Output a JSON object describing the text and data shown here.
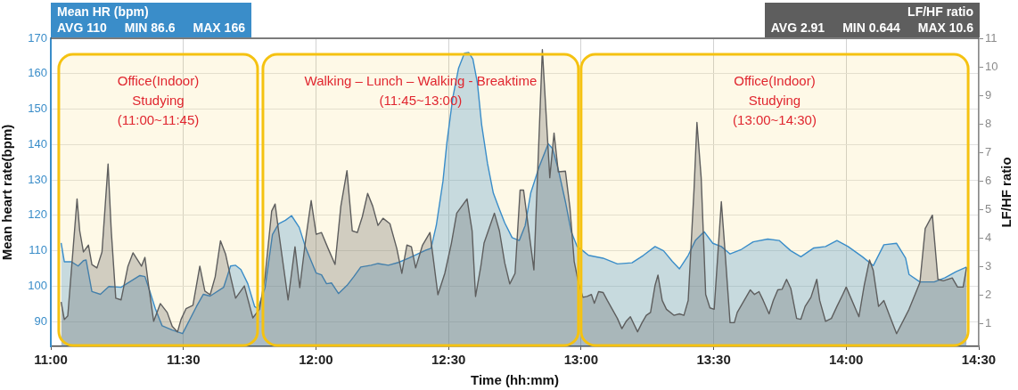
{
  "chart_data": {
    "type": "area",
    "xlabel": "Time (hh:mm)",
    "ylabel": "Mean heart rate(bpm)",
    "y2label": "LF/HF ratio",
    "xlim": [
      11,
      14.5
    ],
    "xticks": [
      {
        "value": 11,
        "label": "11:00"
      },
      {
        "value": 11.5,
        "label": "11:30"
      },
      {
        "value": 12,
        "label": "12:00"
      },
      {
        "value": 12.5,
        "label": "12:30"
      },
      {
        "value": 13,
        "label": "13:00"
      },
      {
        "value": 13.5,
        "label": "13:30"
      },
      {
        "value": 14,
        "label": "14:00"
      },
      {
        "value": 14.5,
        "label": "14:30"
      }
    ],
    "ylim": [
      83,
      170
    ],
    "yticks": [
      90,
      100,
      110,
      120,
      130,
      140,
      150,
      160,
      170
    ],
    "y2lim": [
      0.2,
      11
    ],
    "y2ticks": [
      1,
      2,
      3,
      4,
      5,
      6,
      7,
      8,
      9,
      10,
      11
    ],
    "grid": true,
    "legend": "top",
    "marker": "none",
    "annotations": [
      "AVG 110",
      "MIN 86.6",
      "MAX 166",
      "AVG 2.91",
      "MIN 0.644",
      "MAX 10.6"
    ],
    "bands": [
      {
        "axis": "x",
        "from": 11.03,
        "to": 11.78,
        "label": "Office(Indoor)\nStudying\n(11:00~11:45)",
        "color": "#f5c211"
      },
      {
        "axis": "x",
        "from": 11.8,
        "to": 12.99,
        "label": "Walking – Lunch – Walking - Breaktime\n(11:45~13:00)",
        "color": "#f5c211"
      },
      {
        "axis": "x",
        "from": 13.0,
        "to": 14.46,
        "label": "Office(Indoor)\nStudying\n(13:00~14:30)",
        "color": "#f5c211"
      }
    ],
    "series": [
      {
        "name": "Mean HR (bpm)",
        "color": "#3a8dc9",
        "axis": "y",
        "x": [
          11.039,
          11.051,
          11.077,
          11.103,
          11.123,
          11.133,
          11.155,
          11.187,
          11.219,
          11.265,
          11.297,
          11.336,
          11.355,
          11.375,
          11.394,
          11.42,
          11.458,
          11.497,
          11.549,
          11.575,
          11.601,
          11.652,
          11.678,
          11.697,
          11.717,
          11.743,
          11.769,
          11.781,
          11.808,
          11.836,
          11.859,
          11.885,
          11.908,
          11.937,
          11.962,
          12.001,
          12.021,
          12.04,
          12.059,
          12.085,
          12.117,
          12.143,
          12.169,
          12.208,
          12.234,
          12.273,
          12.311,
          12.35,
          12.415,
          12.434,
          12.454,
          12.479,
          12.494,
          12.516,
          12.538,
          12.56,
          12.576,
          12.592,
          12.609,
          12.625,
          12.647,
          12.669,
          12.69,
          12.712,
          12.74,
          12.767,
          12.789,
          12.81,
          12.843,
          12.876,
          12.892,
          12.914,
          12.941,
          12.963,
          12.985,
          13.007,
          13.028,
          13.083,
          13.137,
          13.192,
          13.235,
          13.279,
          13.311,
          13.344,
          13.371,
          13.404,
          13.431,
          13.464,
          13.497,
          13.529,
          13.562,
          13.605,
          13.649,
          13.704,
          13.747,
          13.791,
          13.829,
          13.878,
          13.922,
          13.965,
          14.007,
          14.061,
          14.102,
          14.142,
          14.19,
          14.224,
          14.237,
          14.278,
          14.332,
          14.373,
          14.414,
          14.454
        ],
        "values": [
          112.2,
          106.9,
          106.9,
          105.7,
          107.2,
          107.4,
          98.5,
          97.7,
          99.9,
          99.7,
          101.2,
          103,
          102.7,
          98.2,
          93.7,
          88.8,
          87.6,
          86.6,
          94.2,
          97.7,
          97.2,
          99.7,
          105.7,
          105.9,
          104.7,
          100.7,
          94.2,
          93.7,
          99.5,
          114.6,
          117.6,
          118.6,
          119.9,
          116.6,
          110.7,
          103.7,
          103.2,
          100.7,
          100.9,
          97.9,
          100.2,
          102.7,
          105.4,
          105.9,
          106.4,
          105.9,
          106.7,
          107.9,
          110.2,
          110.7,
          117.2,
          129.6,
          140.6,
          153.2,
          161.6,
          165.8,
          166,
          164.1,
          157.4,
          145.6,
          134.7,
          126.3,
          122.1,
          117.9,
          113.7,
          112.9,
          117.1,
          126.3,
          133.9,
          140.2,
          138.9,
          133,
          123.8,
          115.4,
          111.2,
          110,
          108.7,
          107.9,
          106.3,
          106.6,
          108.7,
          111.2,
          110,
          107,
          104.9,
          108.7,
          112.9,
          115.4,
          112.1,
          111.2,
          109.1,
          110.4,
          112.5,
          113.3,
          112.9,
          110,
          108.3,
          110.8,
          111.2,
          112.9,
          111.2,
          108.3,
          105.8,
          111.7,
          112.1,
          107.9,
          103.3,
          101.2,
          101.2,
          102.4,
          104.1,
          105.4
        ]
      },
      {
        "name": "LF/HF ratio",
        "color": "#5e5e5e",
        "axis": "y2",
        "x": [
          11.039,
          11.051,
          11.064,
          11.099,
          11.109,
          11.123,
          11.142,
          11.155,
          11.174,
          11.193,
          11.216,
          11.228,
          11.245,
          11.265,
          11.291,
          11.31,
          11.342,
          11.355,
          11.368,
          11.388,
          11.413,
          11.439,
          11.458,
          11.478,
          11.491,
          11.51,
          11.536,
          11.562,
          11.581,
          11.601,
          11.62,
          11.64,
          11.659,
          11.678,
          11.697,
          11.73,
          11.762,
          11.787,
          11.808,
          11.833,
          11.846,
          11.859,
          11.895,
          11.921,
          11.939,
          11.962,
          11.982,
          12.001,
          12.021,
          12.046,
          12.072,
          12.094,
          12.117,
          12.137,
          12.156,
          12.175,
          12.195,
          12.214,
          12.234,
          12.253,
          12.279,
          12.305,
          12.324,
          12.343,
          12.36,
          12.376,
          12.402,
          12.43,
          12.46,
          12.486,
          12.511,
          12.531,
          12.57,
          12.589,
          12.602,
          12.622,
          12.634,
          12.673,
          12.692,
          12.712,
          12.731,
          12.751,
          12.77,
          12.783,
          12.822,
          12.854,
          12.882,
          12.898,
          12.914,
          12.941,
          12.958,
          12.974,
          12.99,
          13.007,
          13.023,
          13.039,
          13.05,
          13.066,
          13.083,
          13.099,
          13.137,
          13.154,
          13.17,
          13.186,
          13.213,
          13.23,
          13.246,
          13.262,
          13.279,
          13.29,
          13.306,
          13.322,
          13.35,
          13.371,
          13.388,
          13.404,
          13.426,
          13.437,
          13.453,
          13.47,
          13.486,
          13.502,
          13.529,
          13.54,
          13.562,
          13.578,
          13.589,
          13.638,
          13.654,
          13.671,
          13.687,
          13.709,
          13.725,
          13.742,
          13.758,
          13.775,
          13.791,
          13.813,
          13.829,
          13.845,
          13.867,
          13.889,
          13.9,
          13.922,
          13.944,
          13.965,
          13.987,
          14,
          14.048,
          14.068,
          14.088,
          14.102,
          14.122,
          14.142,
          14.163,
          14.19,
          14.237,
          14.278,
          14.298,
          14.325,
          14.346,
          14.366,
          14.4,
          14.42,
          14.441,
          14.454
        ],
        "values": [
          1.76,
          1.14,
          1.27,
          5.37,
          4.25,
          3.51,
          3.75,
          3.07,
          2.95,
          3.51,
          6.59,
          4.25,
          1.89,
          1.83,
          3.01,
          3.48,
          3.01,
          3.32,
          2.39,
          1.08,
          1.7,
          1.39,
          0.9,
          0.71,
          1.14,
          1.52,
          1.64,
          3.01,
          2.14,
          2.01,
          2.64,
          3.9,
          3.44,
          2.64,
          1.89,
          2.32,
          1.2,
          1.5,
          2.64,
          4.94,
          5.19,
          4.25,
          1.83,
          3.69,
          2.26,
          4.0,
          5.31,
          4.13,
          4.19,
          3.63,
          3.07,
          5.12,
          6.36,
          4.25,
          4.19,
          4.75,
          5.56,
          5.12,
          4.44,
          4.69,
          4.5,
          3.63,
          2.76,
          3.75,
          3.69,
          2.95,
          3.75,
          4.19,
          2.01,
          2.76,
          3.82,
          4.87,
          5.37,
          4.25,
          1.95,
          3.01,
          3.82,
          4.87,
          4.25,
          3.13,
          2.39,
          2.76,
          5.68,
          5.68,
          2.88,
          10.6,
          6.11,
          7.68,
          6.32,
          6.34,
          5.06,
          3.18,
          2.44,
          1.92,
          1.95,
          2.02,
          1.71,
          2.12,
          2.09,
          1.81,
          1.18,
          0.82,
          1.08,
          1.24,
          0.71,
          1.03,
          1.29,
          1.39,
          2.34,
          2.7,
          1.81,
          1.5,
          1.29,
          1.34,
          1.29,
          1.81,
          5.69,
          8.05,
          6.11,
          2.02,
          1.55,
          1.5,
          5.27,
          3.91,
          1.03,
          1.03,
          1.39,
          2.18,
          2.02,
          2.12,
          1.81,
          1.34,
          1.81,
          2.18,
          2.2,
          2.55,
          2.23,
          1.18,
          1.15,
          1.6,
          1.92,
          2.55,
          1.81,
          1.08,
          1.18,
          1.6,
          2.02,
          2.28,
          1.24,
          2.34,
          3.23,
          2.86,
          1.6,
          1.81,
          1.29,
          0.644,
          1.5,
          2.44,
          4.33,
          4.8,
          2.55,
          2.5,
          2.6,
          2.28,
          2.28,
          2.97
        ]
      }
    ]
  }
}
